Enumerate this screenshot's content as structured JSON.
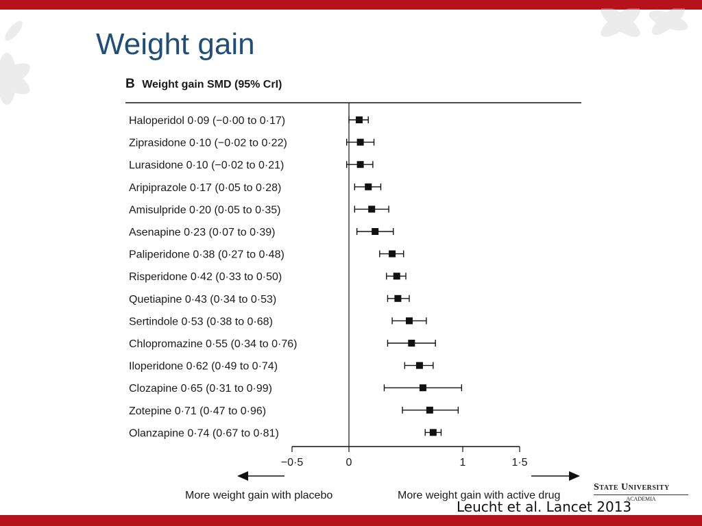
{
  "slide": {
    "title": "Weight gain",
    "citation": "Leucht et al. Lancet 2013",
    "logo": {
      "name": "State University",
      "subtitle": "ACADEMIA"
    }
  },
  "chart_data": {
    "type": "forest",
    "panel_label": "B",
    "title": "Weight gain SMD (95% CrI)",
    "x_ticks": [
      "−0·5",
      "0",
      "1",
      "1·5"
    ],
    "xlim": [
      -0.5,
      1.5
    ],
    "left_note": "More weight gain with placebo",
    "right_note": "More weight gain with active drug",
    "rows": [
      {
        "label": "Haloperidol 0·09 (−0·00 to 0·17)",
        "est": 0.09,
        "lo": -0.0,
        "hi": 0.17
      },
      {
        "label": "Ziprasidone 0·10 (−0·02 to 0·22)",
        "est": 0.1,
        "lo": -0.02,
        "hi": 0.22
      },
      {
        "label": "Lurasidone 0·10 (−0·02 to 0·21)",
        "est": 0.1,
        "lo": -0.02,
        "hi": 0.21
      },
      {
        "label": "Aripiprazole 0·17 (0·05 to 0·28)",
        "est": 0.17,
        "lo": 0.05,
        "hi": 0.28
      },
      {
        "label": "Amisulpride 0·20 (0·05 to 0·35)",
        "est": 0.2,
        "lo": 0.05,
        "hi": 0.35
      },
      {
        "label": "Asenapine 0·23 (0·07 to 0·39)",
        "est": 0.23,
        "lo": 0.07,
        "hi": 0.39
      },
      {
        "label": "Paliperidone 0·38 (0·27 to 0·48)",
        "est": 0.38,
        "lo": 0.27,
        "hi": 0.48
      },
      {
        "label": "Risperidone 0·42 (0·33 to 0·50)",
        "est": 0.42,
        "lo": 0.33,
        "hi": 0.5
      },
      {
        "label": "Quetiapine 0·43 (0·34 to 0·53)",
        "est": 0.43,
        "lo": 0.34,
        "hi": 0.53
      },
      {
        "label": "Sertindole 0·53 (0·38 to 0·68)",
        "est": 0.53,
        "lo": 0.38,
        "hi": 0.68
      },
      {
        "label": "Chlopromazine 0·55 (0·34 to 0·76)",
        "est": 0.55,
        "lo": 0.34,
        "hi": 0.76
      },
      {
        "label": "Iloperidone 0·62 (0·49 to 0·74)",
        "est": 0.62,
        "lo": 0.49,
        "hi": 0.74
      },
      {
        "label": "Clozapine 0·65 (0·31 to 0·99)",
        "est": 0.65,
        "lo": 0.31,
        "hi": 0.99
      },
      {
        "label": "Zotepine 0·71 (0·47 to 0·96)",
        "est": 0.71,
        "lo": 0.47,
        "hi": 0.96
      },
      {
        "label": "Olanzapine 0·74 (0·67 to 0·81)",
        "est": 0.74,
        "lo": 0.67,
        "hi": 0.81
      }
    ]
  }
}
